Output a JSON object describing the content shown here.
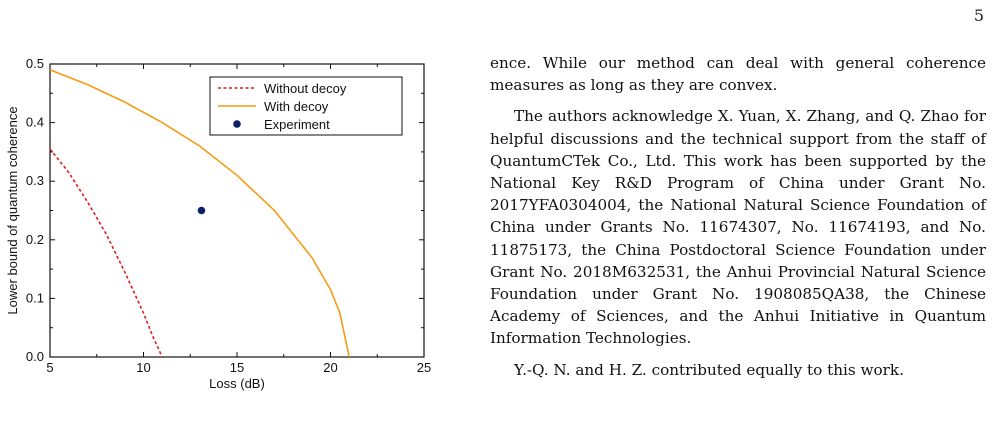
{
  "page_number": "5",
  "paragraphs": [
    {
      "text": "ence. While our method can deal with general coherence measures as long as they are convex.",
      "indent": false
    },
    {
      "text": "The authors acknowledge X. Yuan, X. Zhang, and Q. Zhao for helpful discussions and the technical support from the staff of QuantumCTek Co., Ltd. This work has been supported by the National Key R&D Program of China under Grant No. 2017YFA0304004, the National Natural Science Foundation of China under Grants No. 11674307, No. 11674193, and No. 11875173, the China Postdoctoral Science Foundation under Grant No. 2018M632531, the Anhui Provincial Natural Science Foundation under Grant No. 1908085QA38, the Chinese Academy of Sciences, and the Anhui Initiative in Quantum Information Technologies.",
      "indent": true
    },
    {
      "text": "Y.-Q. N. and H. Z. contributed equally to this work.",
      "indent": true
    }
  ],
  "chart_data": {
    "type": "line",
    "xlabel": "Loss (dB)",
    "ylabel": "Lower bound of quantum coherence",
    "xlim": [
      5,
      25
    ],
    "ylim": [
      0.0,
      0.5
    ],
    "xticks": [
      "5",
      "10",
      "15",
      "20",
      "25"
    ],
    "yticks": [
      "0.0",
      "0.1",
      "0.2",
      "0.3",
      "0.4",
      "0.5"
    ],
    "legend_position": "top-right",
    "series": [
      {
        "name": "Without decoy",
        "kind": "line",
        "style": "dashed",
        "color": "#e31a1c",
        "x": [
          5,
          6,
          7,
          8,
          9,
          10,
          10.5,
          11.0
        ],
        "y": [
          0.355,
          0.315,
          0.265,
          0.21,
          0.145,
          0.075,
          0.035,
          0.0
        ]
      },
      {
        "name": "With decoy",
        "kind": "line",
        "style": "solid",
        "color": "#f39c12",
        "x": [
          5,
          7,
          9,
          11,
          13,
          15,
          17,
          19,
          20,
          20.5,
          21.0
        ],
        "y": [
          0.49,
          0.465,
          0.435,
          0.4,
          0.36,
          0.31,
          0.25,
          0.17,
          0.115,
          0.075,
          0.0
        ]
      },
      {
        "name": "Experiment",
        "kind": "scatter",
        "color": "#0b1f6b",
        "x": [
          13.1
        ],
        "y": [
          0.25
        ]
      }
    ]
  }
}
